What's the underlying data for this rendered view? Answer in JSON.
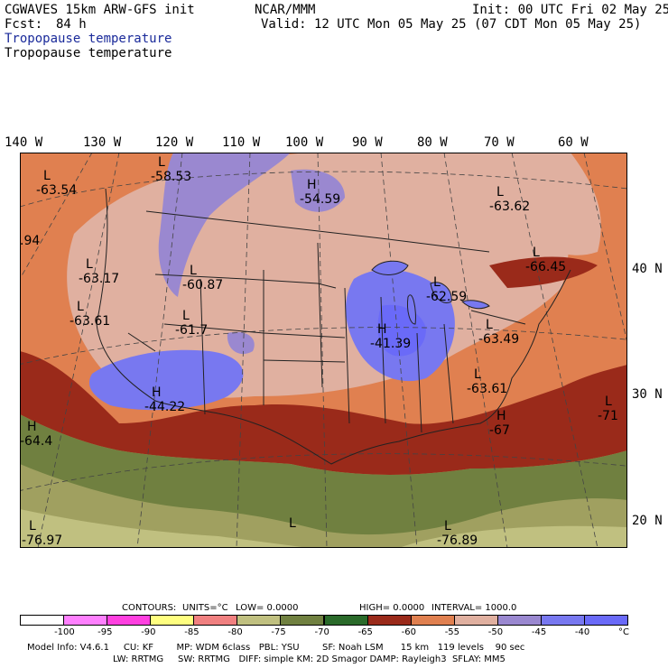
{
  "header": {
    "model": "CGWAVES 15km ARW-GFS init",
    "fcst_label": "Fcst:",
    "fcst_value": "84 h",
    "org": "NCAR/MMM",
    "init": "Init: 00 UTC Fri 02 May 25",
    "valid": "Valid: 12 UTC Mon 05 May 25 (07 CDT Mon 05 May 25)",
    "field_title_1": "Tropopause temperature",
    "field_title_2": "Tropopause temperature"
  },
  "longitudes": [
    "140 W",
    "130 W",
    "120 W",
    "110 W",
    "100 W",
    "90 W",
    "80 W",
    "70 W",
    "60 W"
  ],
  "latitudes": [
    "40 N",
    "30 N",
    "20 N"
  ],
  "map_labels": [
    {
      "letter": "L",
      "value": "-58.53"
    },
    {
      "letter": "L",
      "value": "-63.54"
    },
    {
      "letter": "H",
      "value": "-54.59"
    },
    {
      "letter": "L",
      "value": "-63.62"
    },
    {
      "letter": "",
      "value": ".94"
    },
    {
      "letter": "L",
      "value": "-63.17"
    },
    {
      "letter": "L",
      "value": "-60.87"
    },
    {
      "letter": "L",
      "value": "-66.45"
    },
    {
      "letter": "L",
      "value": "-62.59"
    },
    {
      "letter": "L",
      "value": "-63.61"
    },
    {
      "letter": "L",
      "value": "-61.7"
    },
    {
      "letter": "H",
      "value": "-41.39"
    },
    {
      "letter": "L",
      "value": "-63.49"
    },
    {
      "letter": "L",
      "value": "-63.61"
    },
    {
      "letter": "H",
      "value": "-44.22"
    },
    {
      "letter": "L",
      "value": "-71"
    },
    {
      "letter": "H",
      "value": "-64.4"
    },
    {
      "letter": "H",
      "value": "-67"
    },
    {
      "letter": "L",
      "value": "-76.97"
    },
    {
      "letter": "L",
      "value": ""
    },
    {
      "letter": "L",
      "value": "-76.89"
    }
  ],
  "contours": {
    "label": "CONTOURS:",
    "units": "UNITS=°C",
    "low": "LOW=  0.0000",
    "high": "HIGH=  0.0000",
    "interval": "INTERVAL=   1000.0"
  },
  "colorbar": {
    "colors": [
      "#ffffff",
      "#ff80ff",
      "#ff40e0",
      "#ffff80",
      "#f08080",
      "#c0c080",
      "#708040",
      "#2a6a2a",
      "#9a2a1a",
      "#e08050",
      "#e0b0a0",
      "#9a88d0",
      "#7878f0",
      "#6a6af8"
    ],
    "labels": [
      "-100",
      "-95",
      "-90",
      "-85",
      "-80",
      "-75",
      "-70",
      "-65",
      "-60",
      "-55",
      "-50",
      "-45",
      "-40",
      "°C"
    ]
  },
  "model_info": {
    "line1": "Model Info: V4.6.1     CU: KF        MP: WDM 6class   PBL: YSU        SF: Noah LSM      15 km   119 levels    90 sec",
    "line2": "LW: RRTMG     SW: RRTMG   DIFF: simple KM: 2D Smagor DAMP: Rayleigh3  SFLAY: MM5"
  }
}
